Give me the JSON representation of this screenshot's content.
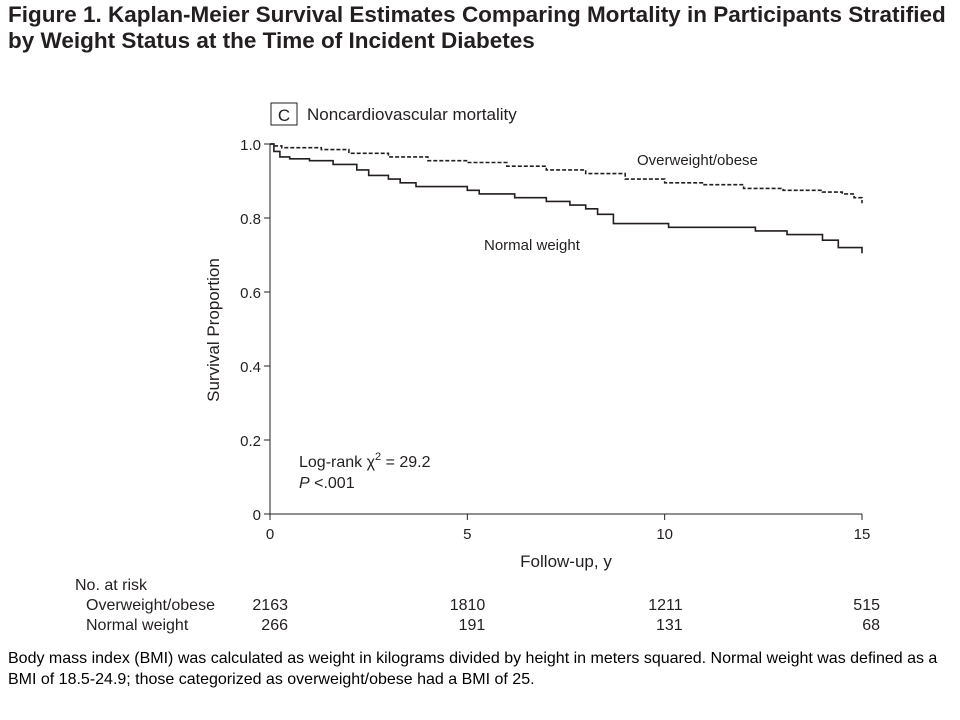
{
  "figure": {
    "label": "Figure 1.",
    "title": "Kaplan-Meier Survival Estimates Comparing Mortality in Participants Stratified by Weight Status at the Time of Incident Diabetes"
  },
  "caption": "Body mass index (BMI) was calculated as weight in kilograms divided by height in meters squared. Normal weight was defined as a BMI of 18.5-24.9; those categorized as overweight/obese had a BMI of 25.",
  "chart_data": {
    "type": "line",
    "panel_label": "C",
    "title": "Noncardiovascular mortality",
    "xlabel": "Follow-up, y",
    "ylabel": "Survival Proportion",
    "xlim": [
      0,
      15
    ],
    "ylim": [
      0,
      1.0
    ],
    "x_ticks": [
      0,
      5,
      10,
      15
    ],
    "x_tick_labels": [
      "0",
      "5",
      "10",
      "15"
    ],
    "y_ticks": [
      0,
      0.2,
      0.4,
      0.6,
      0.8,
      1.0
    ],
    "y_tick_labels": [
      "0",
      "0.2",
      "0.4",
      "0.6",
      "0.8",
      "1.0"
    ],
    "grid": false,
    "series": [
      {
        "name": "Overweight/obese",
        "style": "dashed",
        "color": "#231f20",
        "x": [
          0,
          0.1,
          0.3,
          0.6,
          1.3,
          2.0,
          3.0,
          4.0,
          5.0,
          6.0,
          7.0,
          8.0,
          9.0,
          10.0,
          11.0,
          12.0,
          13.0,
          14.0,
          14.5,
          14.8,
          15.0
        ],
        "y": [
          1.0,
          0.995,
          0.99,
          0.99,
          0.985,
          0.975,
          0.965,
          0.955,
          0.95,
          0.94,
          0.93,
          0.92,
          0.905,
          0.895,
          0.89,
          0.88,
          0.875,
          0.87,
          0.865,
          0.855,
          0.84
        ]
      },
      {
        "name": "Normal weight",
        "style": "solid",
        "color": "#231f20",
        "x": [
          0,
          0.1,
          0.25,
          0.5,
          1.0,
          1.6,
          2.2,
          2.5,
          3.0,
          3.3,
          3.7,
          4.0,
          5.0,
          5.3,
          6.2,
          7.0,
          7.6,
          8.0,
          8.3,
          8.7,
          10.1,
          12.3,
          13.1,
          14.0,
          14.4,
          15.0
        ],
        "y": [
          1.0,
          0.98,
          0.965,
          0.96,
          0.955,
          0.945,
          0.93,
          0.915,
          0.905,
          0.895,
          0.885,
          0.885,
          0.875,
          0.865,
          0.855,
          0.845,
          0.835,
          0.825,
          0.81,
          0.785,
          0.775,
          0.765,
          0.755,
          0.74,
          0.72,
          0.705
        ]
      }
    ],
    "annotations": [
      {
        "id": "logrank",
        "text": "Log-rank χ",
        "sup": "2",
        "rest": " = 29.2"
      },
      {
        "id": "pvalue",
        "text": "P",
        "rest": " <.001"
      }
    ],
    "risk_table": {
      "title": "No. at risk",
      "times": [
        0,
        5,
        10,
        15
      ],
      "rows": [
        {
          "name": "Overweight/obese",
          "values": [
            "2163",
            "1810",
            "1211",
            "515"
          ]
        },
        {
          "name": "Normal weight",
          "values": [
            "266",
            "191",
            "131",
            "68"
          ]
        }
      ]
    }
  }
}
